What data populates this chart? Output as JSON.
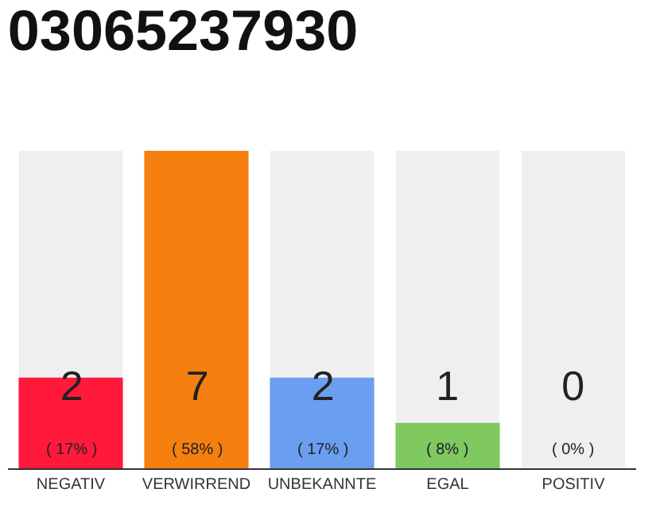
{
  "chart_data": {
    "type": "bar",
    "title": "03065237930",
    "categories": [
      "NEGATIV",
      "VERWIRREND",
      "UNBEKANNTE",
      "EGAL",
      "POSITIV"
    ],
    "values": [
      2,
      7,
      2,
      1,
      0
    ],
    "colors": [
      "#ff1a3c",
      "#f57f0f",
      "#6a9ef0",
      "#80c860",
      "#cccccc"
    ],
    "value_labels": [
      "2\n( 17% )",
      "7\n( 58% )",
      "2\n( 17% )",
      "1\n( 8% )",
      "0\n( 0% )"
    ],
    "grid": false,
    "legend": false
  }
}
